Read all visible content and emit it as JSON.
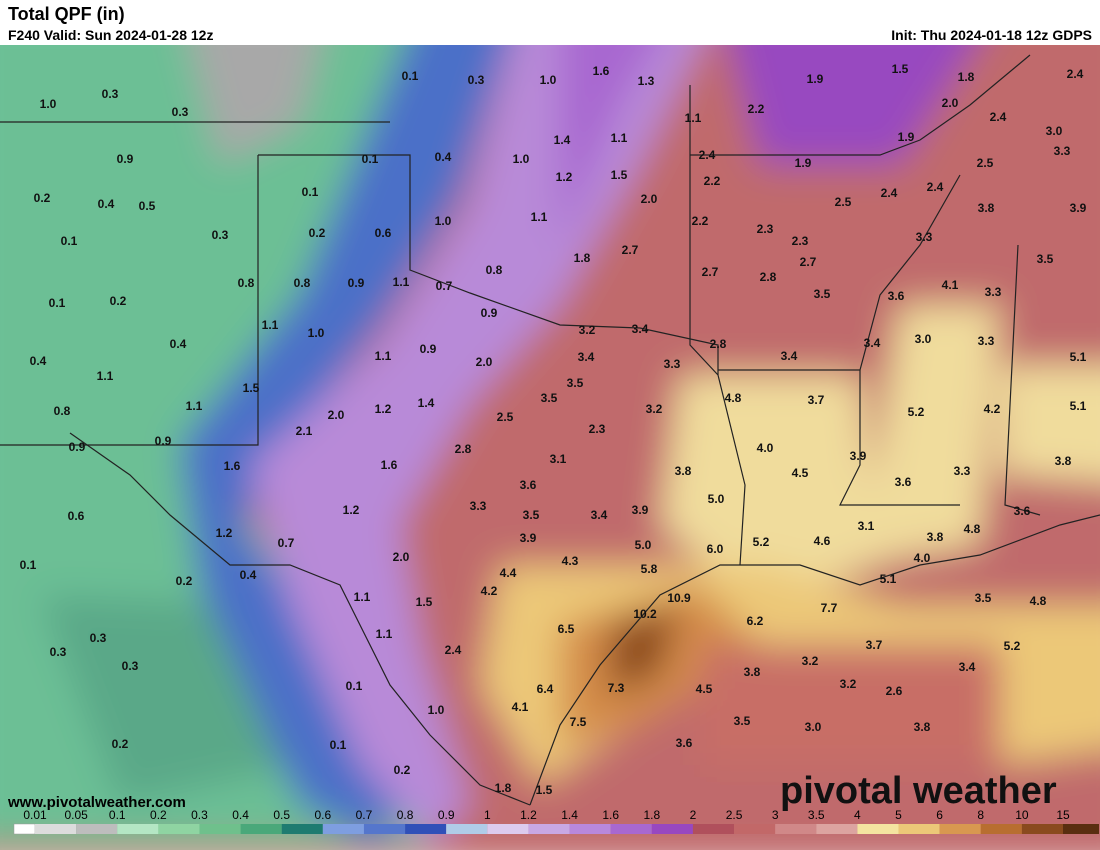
{
  "header": {
    "title": "Total QPF (in)",
    "valid": "F240 Valid: Sun 2024-01-28 12z",
    "init": "Init: Thu 2024-01-18 12z GDPS"
  },
  "footer": {
    "website": "www.pivotalweather.com",
    "logo": "pivotal weather"
  },
  "map_labels": [
    "0.1",
    "0.3",
    "1.0",
    "1.6",
    "1.3",
    "1.9",
    "1.5",
    "1.8",
    "2.4",
    "1.0",
    "0.3",
    "0.3",
    "1.1",
    "2.2",
    "2.0",
    "2.4",
    "3.0",
    "1.4",
    "1.1",
    "1.9",
    "3.3",
    "0.9",
    "0.1",
    "0.4",
    "1.0",
    "2.4",
    "1.9",
    "2.5",
    "1.2",
    "1.5",
    "2.2",
    "0.2",
    "0.4",
    "0.5",
    "0.1",
    "2.0",
    "2.5",
    "2.4",
    "2.4",
    "3.8",
    "3.9",
    "1.0",
    "1.1",
    "2.2",
    "2.3",
    "0.1",
    "0.3",
    "0.2",
    "0.6",
    "2.3",
    "3.3",
    "2.7",
    "1.8",
    "2.7",
    "3.5",
    "0.8",
    "0.8",
    "0.9",
    "1.1",
    "0.7",
    "0.8",
    "2.7",
    "2.8",
    "4.1",
    "3.3",
    "0.1",
    "0.2",
    "0.9",
    "3.5",
    "3.6",
    "1.1",
    "1.0",
    "3.2",
    "3.4",
    "3.0",
    "3.3",
    "0.4",
    "0.4",
    "0.9",
    "1.1",
    "2.0",
    "3.4",
    "3.3",
    "2.8",
    "3.4",
    "3.4",
    "5.1",
    "1.1",
    "3.5",
    "1.5",
    "0.8",
    "1.1",
    "2.0",
    "1.2",
    "1.4",
    "3.5",
    "4.8",
    "3.7",
    "3.2",
    "5.2",
    "4.2",
    "5.1",
    "2.1",
    "2.5",
    "2.3",
    "0.9",
    "0.9",
    "2.8",
    "4.0",
    "3.9",
    "1.6",
    "1.6",
    "3.1",
    "3.8",
    "4.5",
    "3.3",
    "3.8",
    "3.6",
    "5.0",
    "3.6",
    "0.6",
    "1.2",
    "3.3",
    "3.5",
    "3.4",
    "3.9",
    "3.1",
    "3.6",
    "4.8",
    "1.2",
    "0.7",
    "3.9",
    "5.0",
    "6.0",
    "5.2",
    "4.6",
    "3.8",
    "0.1",
    "2.0",
    "4.3",
    "4.0",
    "0.2",
    "0.4",
    "4.4",
    "5.8",
    "5.1",
    "1.1",
    "1.5",
    "4.2",
    "10.9",
    "7.7",
    "3.5",
    "4.8",
    "10.2",
    "6.5",
    "6.2",
    "0.3",
    "1.1",
    "3.7",
    "5.2",
    "0.3",
    "2.4",
    "0.3",
    "3.2",
    "3.4",
    "3.8",
    "0.1",
    "3.2",
    "2.6",
    "7.3",
    "4.5",
    "6.4",
    "1.0",
    "4.1",
    "7.5",
    "3.5",
    "3.0",
    "3.8",
    "0.2",
    "0.1",
    "3.6",
    "0.2",
    "1.8",
    "1.5"
  ],
  "colorbar": {
    "labels": [
      "0.01",
      "0.05",
      "0.1",
      "0.2",
      "0.3",
      "0.4",
      "0.5",
      "0.6",
      "0.7",
      "0.8",
      "0.9",
      "1",
      "1.2",
      "1.4",
      "1.6",
      "1.8",
      "2",
      "2.5",
      "3",
      "3.5",
      "4",
      "5",
      "6",
      "8",
      "10",
      "15"
    ],
    "colors": [
      "#dcdcdc",
      "#bdbdbd",
      "#b4e6c4",
      "#8fd4a2",
      "#6fc08c",
      "#4aa87a",
      "#1e7b70",
      "#7e9ee0",
      "#5576cc",
      "#3050b8",
      "#b0cce8",
      "#dccbee",
      "#c8a8e4",
      "#b888dc",
      "#a868d0",
      "#9848c0",
      "#b0505c",
      "#c26868",
      "#d08888",
      "#dca4a0",
      "#f4e4a0",
      "#ecc878",
      "#d89850",
      "#b86e30",
      "#8a4a1e",
      "#5a2e10"
    ]
  }
}
